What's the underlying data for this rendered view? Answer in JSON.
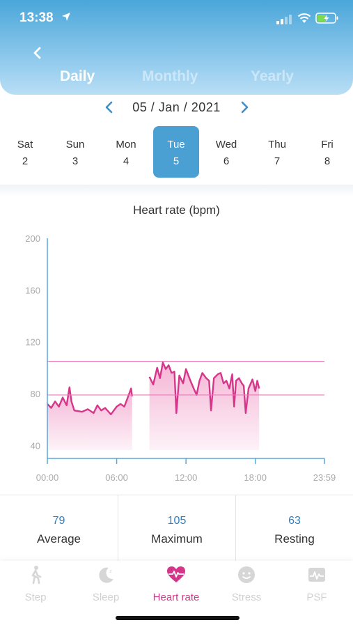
{
  "status_bar": {
    "time": "13:38"
  },
  "period_tabs": [
    {
      "label": "Daily",
      "active": true
    },
    {
      "label": "Monthly",
      "active": false
    },
    {
      "label": "Yearly",
      "active": false
    }
  ],
  "date_nav": {
    "date": "05 / Jan / 2021"
  },
  "week": [
    {
      "name": "Sat",
      "num": "2"
    },
    {
      "name": "Sun",
      "num": "3"
    },
    {
      "name": "Mon",
      "num": "4"
    },
    {
      "name": "Tue",
      "num": "5",
      "active": true
    },
    {
      "name": "Wed",
      "num": "6"
    },
    {
      "name": "Thu",
      "num": "7"
    },
    {
      "name": "Fri",
      "num": "8"
    }
  ],
  "chart_data": {
    "type": "area",
    "title": "Heart rate (bpm)",
    "xlabel": "",
    "ylabel": "",
    "xlim": [
      "00:00",
      "23:59"
    ],
    "ylim": [
      30,
      200
    ],
    "y_ticks": [
      40,
      80,
      120,
      160,
      200
    ],
    "x_ticks": [
      "00:00",
      "06:00",
      "12:00",
      "18:00",
      "23:59"
    ],
    "reference_lines": [
      {
        "value": 105,
        "meaning": "Maximum"
      },
      {
        "value": 79,
        "meaning": "Average"
      }
    ],
    "series": [
      {
        "segments": [
          [
            [
              "00:00",
              72
            ],
            [
              "00:20",
              69
            ],
            [
              "00:40",
              74
            ],
            [
              "01:00",
              70
            ],
            [
              "01:20",
              77
            ],
            [
              "01:40",
              71
            ],
            [
              "01:55",
              85
            ],
            [
              "02:05",
              74
            ],
            [
              "02:20",
              67
            ],
            [
              "03:00",
              66
            ],
            [
              "03:30",
              68
            ],
            [
              "04:00",
              65
            ],
            [
              "04:20",
              71
            ],
            [
              "04:40",
              67
            ],
            [
              "05:00",
              69
            ],
            [
              "05:30",
              64
            ],
            [
              "06:00",
              70
            ],
            [
              "06:20",
              72
            ],
            [
              "06:40",
              70
            ],
            [
              "06:55",
              76
            ],
            [
              "07:05",
              80
            ],
            [
              "07:15",
              84
            ],
            [
              "07:20",
              78
            ]
          ],
          [
            [
              "08:50",
              93
            ],
            [
              "09:10",
              87
            ],
            [
              "09:30",
              100
            ],
            [
              "09:45",
              92
            ],
            [
              "10:00",
              104
            ],
            [
              "10:15",
              99
            ],
            [
              "10:30",
              102
            ],
            [
              "10:45",
              96
            ],
            [
              "11:00",
              97
            ],
            [
              "11:10",
              65
            ],
            [
              "11:25",
              94
            ],
            [
              "11:45",
              88
            ],
            [
              "12:00",
              99
            ],
            [
              "12:20",
              91
            ],
            [
              "12:40",
              84
            ],
            [
              "12:55",
              79
            ],
            [
              "13:10",
              90
            ],
            [
              "13:25",
              96
            ],
            [
              "13:45",
              92
            ],
            [
              "14:00",
              90
            ],
            [
              "14:10",
              67
            ],
            [
              "14:25",
              92
            ],
            [
              "14:45",
              95
            ],
            [
              "15:00",
              96
            ],
            [
              "15:15",
              88
            ],
            [
              "15:30",
              90
            ],
            [
              "15:45",
              84
            ],
            [
              "16:00",
              95
            ],
            [
              "16:10",
              70
            ],
            [
              "16:20",
              90
            ],
            [
              "16:35",
              92
            ],
            [
              "16:50",
              88
            ],
            [
              "17:00",
              86
            ],
            [
              "17:10",
              65
            ],
            [
              "17:25",
              84
            ],
            [
              "17:45",
              91
            ],
            [
              "18:00",
              82
            ],
            [
              "18:10",
              90
            ],
            [
              "18:20",
              84
            ]
          ]
        ]
      }
    ]
  },
  "stats": [
    {
      "value": "79",
      "label": "Average"
    },
    {
      "value": "105",
      "label": "Maximum"
    },
    {
      "value": "63",
      "label": "Resting"
    }
  ],
  "colors": {
    "accent": "#4a9fd3",
    "heart": "#d6368a",
    "value": "#2e7fc2"
  },
  "nav": [
    {
      "label": "Step",
      "icon": "walk-icon"
    },
    {
      "label": "Sleep",
      "icon": "moon-icon"
    },
    {
      "label": "Heart rate",
      "icon": "heart-icon",
      "active": true
    },
    {
      "label": "Stress",
      "icon": "face-icon"
    },
    {
      "label": "PSF",
      "icon": "pulse-icon"
    }
  ]
}
